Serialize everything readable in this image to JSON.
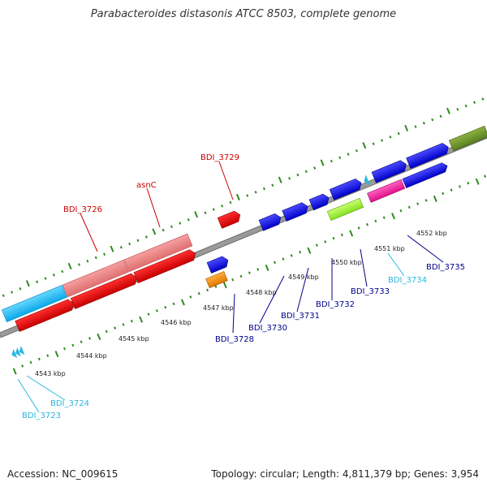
{
  "title": "Parabacteroides distasonis ATCC 8503, complete genome",
  "footer": {
    "accession": "Accession: NC_009615",
    "topology": "Topology: circular; Length: 4,811,379 bp; Genes: 3,954"
  },
  "colors": {
    "ticks": "#2e8b1e",
    "backbone": "#888888",
    "label_red": "#cc0000",
    "label_navy": "#00008b",
    "label_cyan": "#29b6e0"
  },
  "kbp_labels": [
    "4543 kbp",
    "4544 kbp",
    "4545 kbp",
    "4546 kbp",
    "4547 kbp",
    "4548 kbp",
    "4549 kbp",
    "4550 kbp",
    "4551 kbp",
    "4552 kbp"
  ],
  "gene_labels": [
    {
      "name": "BDI_3726",
      "color": "#cc0000"
    },
    {
      "name": "asnC",
      "color": "#cc0000"
    },
    {
      "name": "BDI_3729",
      "color": "#cc0000"
    },
    {
      "name": "BDI_3728",
      "color": "#00008b"
    },
    {
      "name": "BDI_3730",
      "color": "#00008b"
    },
    {
      "name": "BDI_3731",
      "color": "#00008b"
    },
    {
      "name": "BDI_3732",
      "color": "#00008b"
    },
    {
      "name": "BDI_3733",
      "color": "#00008b"
    },
    {
      "name": "BDI_3734",
      "color": "#29b6e0"
    },
    {
      "name": "BDI_3735",
      "color": "#00008b"
    },
    {
      "name": "BDI_3724",
      "color": "#29b6e0"
    },
    {
      "name": "BDI_3723",
      "color": "#29b6e0"
    }
  ]
}
